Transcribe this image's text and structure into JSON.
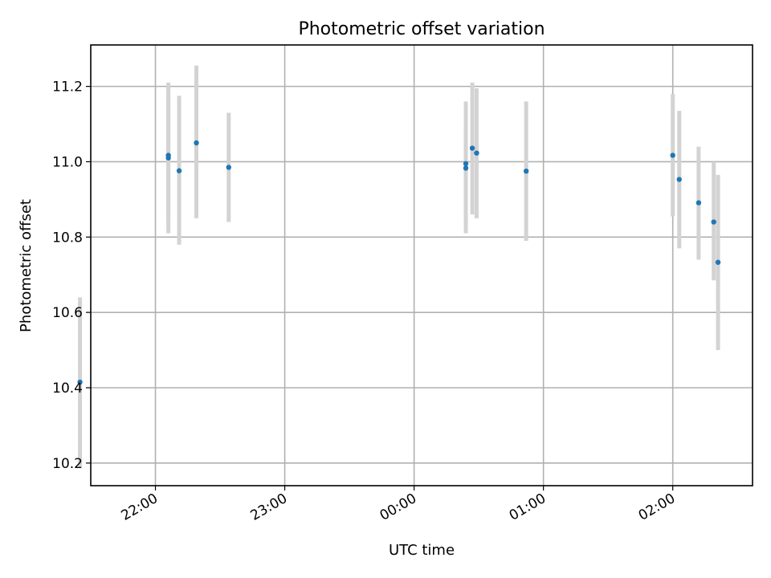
{
  "chart_data": {
    "type": "scatter",
    "title": "Photometric offset variation",
    "xlabel": "UTC time",
    "ylabel": "Photometric offset",
    "x_unit": "UTC time (HH:MM), observation night spanning midnight",
    "xlim": [
      "21:30",
      "02:37"
    ],
    "ylim": [
      10.14,
      11.31
    ],
    "x_ticks": [
      "22:00",
      "23:00",
      "00:00",
      "01:00",
      "02:00"
    ],
    "y_ticks": [
      10.2,
      10.4,
      10.6,
      10.8,
      11.0,
      11.2
    ],
    "y_tick_labels": [
      "10.2",
      "10.4",
      "10.6",
      "10.8",
      "11.0",
      "11.2"
    ],
    "grid": true,
    "legend": "none",
    "series": [
      {
        "marker_color": "#1f77b4",
        "errorbar_color": "#d3d3d3",
        "points": [
          {
            "x": "21:25",
            "y": 10.415,
            "yerr_low": 10.19,
            "yerr_high": 10.64
          },
          {
            "x": "22:06",
            "y": 11.01,
            "yerr_low": 10.81,
            "yerr_high": 11.21
          },
          {
            "x": "22:06",
            "y": 11.017,
            "yerr_low": 10.84,
            "yerr_high": 11.18
          },
          {
            "x": "22:11",
            "y": 10.976,
            "yerr_low": 10.78,
            "yerr_high": 11.175
          },
          {
            "x": "22:19",
            "y": 11.05,
            "yerr_low": 10.85,
            "yerr_high": 11.255
          },
          {
            "x": "22:34",
            "y": 10.985,
            "yerr_low": 10.84,
            "yerr_high": 11.13
          },
          {
            "x": "00:24",
            "y": 10.995,
            "yerr_low": 10.81,
            "yerr_high": 11.16
          },
          {
            "x": "00:24",
            "y": 10.983,
            "yerr_low": 10.84,
            "yerr_high": 11.1
          },
          {
            "x": "00:27",
            "y": 11.036,
            "yerr_low": 10.86,
            "yerr_high": 11.21
          },
          {
            "x": "00:29",
            "y": 11.023,
            "yerr_low": 10.85,
            "yerr_high": 11.195
          },
          {
            "x": "00:52",
            "y": 10.975,
            "yerr_low": 10.79,
            "yerr_high": 11.16
          },
          {
            "x": "02:00",
            "y": 11.017,
            "yerr_low": 10.855,
            "yerr_high": 11.18
          },
          {
            "x": "02:03",
            "y": 10.953,
            "yerr_low": 10.77,
            "yerr_high": 11.135
          },
          {
            "x": "02:12",
            "y": 10.891,
            "yerr_low": 10.74,
            "yerr_high": 11.04
          },
          {
            "x": "02:19",
            "y": 10.84,
            "yerr_low": 10.685,
            "yerr_high": 11.0
          },
          {
            "x": "02:21",
            "y": 10.733,
            "yerr_low": 10.5,
            "yerr_high": 10.965
          }
        ]
      }
    ]
  }
}
